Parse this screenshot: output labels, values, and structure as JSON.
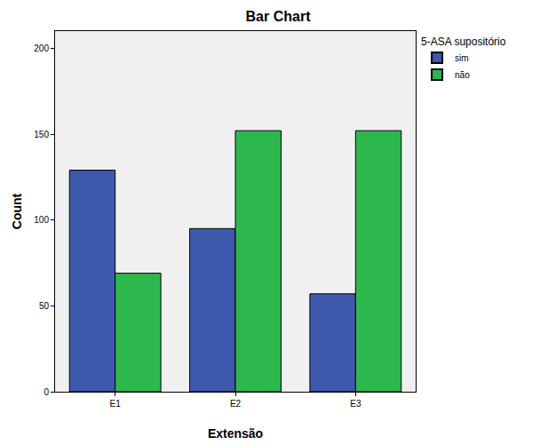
{
  "chart_data": {
    "type": "bar",
    "title": "Bar Chart",
    "x_label": "Extensão",
    "y_label": "Count",
    "legend_title": "5-ASA supositório",
    "categories": [
      "E1",
      "E2",
      "E3"
    ],
    "series": [
      {
        "name": "sim",
        "color": "#3e58ac",
        "values": [
          129,
          95,
          57
        ]
      },
      {
        "name": "não",
        "color": "#2db84d",
        "values": [
          69,
          152,
          152
        ]
      }
    ],
    "ylim": [
      0,
      210
    ],
    "yticks": [
      0,
      50,
      100,
      150,
      200
    ],
    "grid": false,
    "legend": "upper right"
  }
}
